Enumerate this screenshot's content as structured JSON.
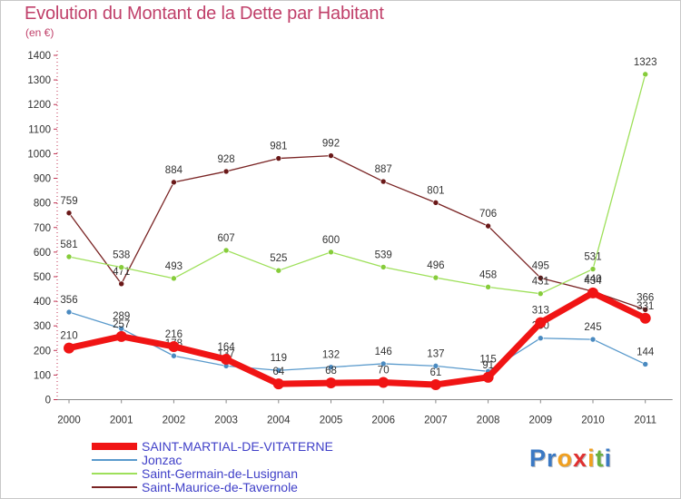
{
  "title": "Evolution du Montant de la Dette par Habitant",
  "unit": "(en €)",
  "logo": {
    "letters": [
      "P",
      "r",
      "o",
      "x",
      "i",
      "t",
      "i"
    ],
    "colors": [
      "#3b79c4",
      "#3b79c4",
      "#f0a020",
      "#e03030",
      "#f0a020",
      "#6ab040",
      "#3b79c4"
    ]
  },
  "chart_data": {
    "type": "line",
    "title": "Evolution du Montant de la Dette par Habitant",
    "ylabel": "(en €)",
    "xlabel": "",
    "ylim": [
      0,
      1400
    ],
    "yticks": [
      0,
      100,
      200,
      300,
      400,
      500,
      600,
      700,
      800,
      900,
      1000,
      1100,
      1200,
      1300,
      1400
    ],
    "categories": [
      "2000",
      "2001",
      "2002",
      "2003",
      "2004",
      "2005",
      "2006",
      "2007",
      "2008",
      "2009",
      "2010",
      "2011"
    ],
    "grid": false,
    "legend_position": "bottom-left",
    "series": [
      {
        "name": "Saint-Maurice-de-Tavernole",
        "color": "#7a2424",
        "marker_color": "#6a1818",
        "values": [
          759,
          471,
          884,
          928,
          981,
          992,
          887,
          801,
          706,
          495,
          440,
          366
        ],
        "labels": [
          "759",
          "471",
          "884",
          "928",
          "981",
          "992",
          "887",
          "801",
          "706",
          "495",
          "440",
          "366"
        ]
      },
      {
        "name": "Saint-Germain-de-Lusignan",
        "color": "#9ee05a",
        "marker_color": "#86cc3a",
        "values": [
          581,
          538,
          493,
          607,
          525,
          600,
          539,
          496,
          458,
          431,
          531,
          1323
        ],
        "labels": [
          "581",
          "538",
          "493",
          "607",
          "525",
          "600",
          "539",
          "496",
          "458",
          "431",
          "531",
          "1323"
        ]
      },
      {
        "name": "Jonzac",
        "color": "#5a9acc",
        "marker_color": "#4a8ac0",
        "values": [
          356,
          289,
          178,
          137,
          119,
          132,
          146,
          137,
          115,
          250,
          245,
          144
        ],
        "labels": [
          "356",
          "289",
          "178",
          "137",
          "119",
          "132",
          "146",
          "137",
          "115",
          "250",
          "245",
          "144"
        ]
      },
      {
        "name": "SAINT-MARTIAL-DE-VITATERNE",
        "color": "#f01414",
        "marker_color": "#f01414",
        "values": [
          210,
          257,
          216,
          164,
          64,
          68,
          70,
          61,
          91,
          313,
          434,
          331
        ],
        "labels": [
          "210",
          "257",
          "216",
          "164",
          "64",
          "68",
          "70",
          "61",
          "91",
          "313",
          "434",
          "331"
        ]
      }
    ]
  },
  "legend": [
    {
      "label": "SAINT-MARTIAL-DE-VITATERNE",
      "color": "#f01414",
      "thick": true
    },
    {
      "label": "Jonzac",
      "color": "#5a9acc",
      "thick": false
    },
    {
      "label": "Saint-Germain-de-Lusignan",
      "color": "#9ee05a",
      "thick": false
    },
    {
      "label": "Saint-Maurice-de-Tavernole",
      "color": "#7a2424",
      "thick": false
    }
  ]
}
